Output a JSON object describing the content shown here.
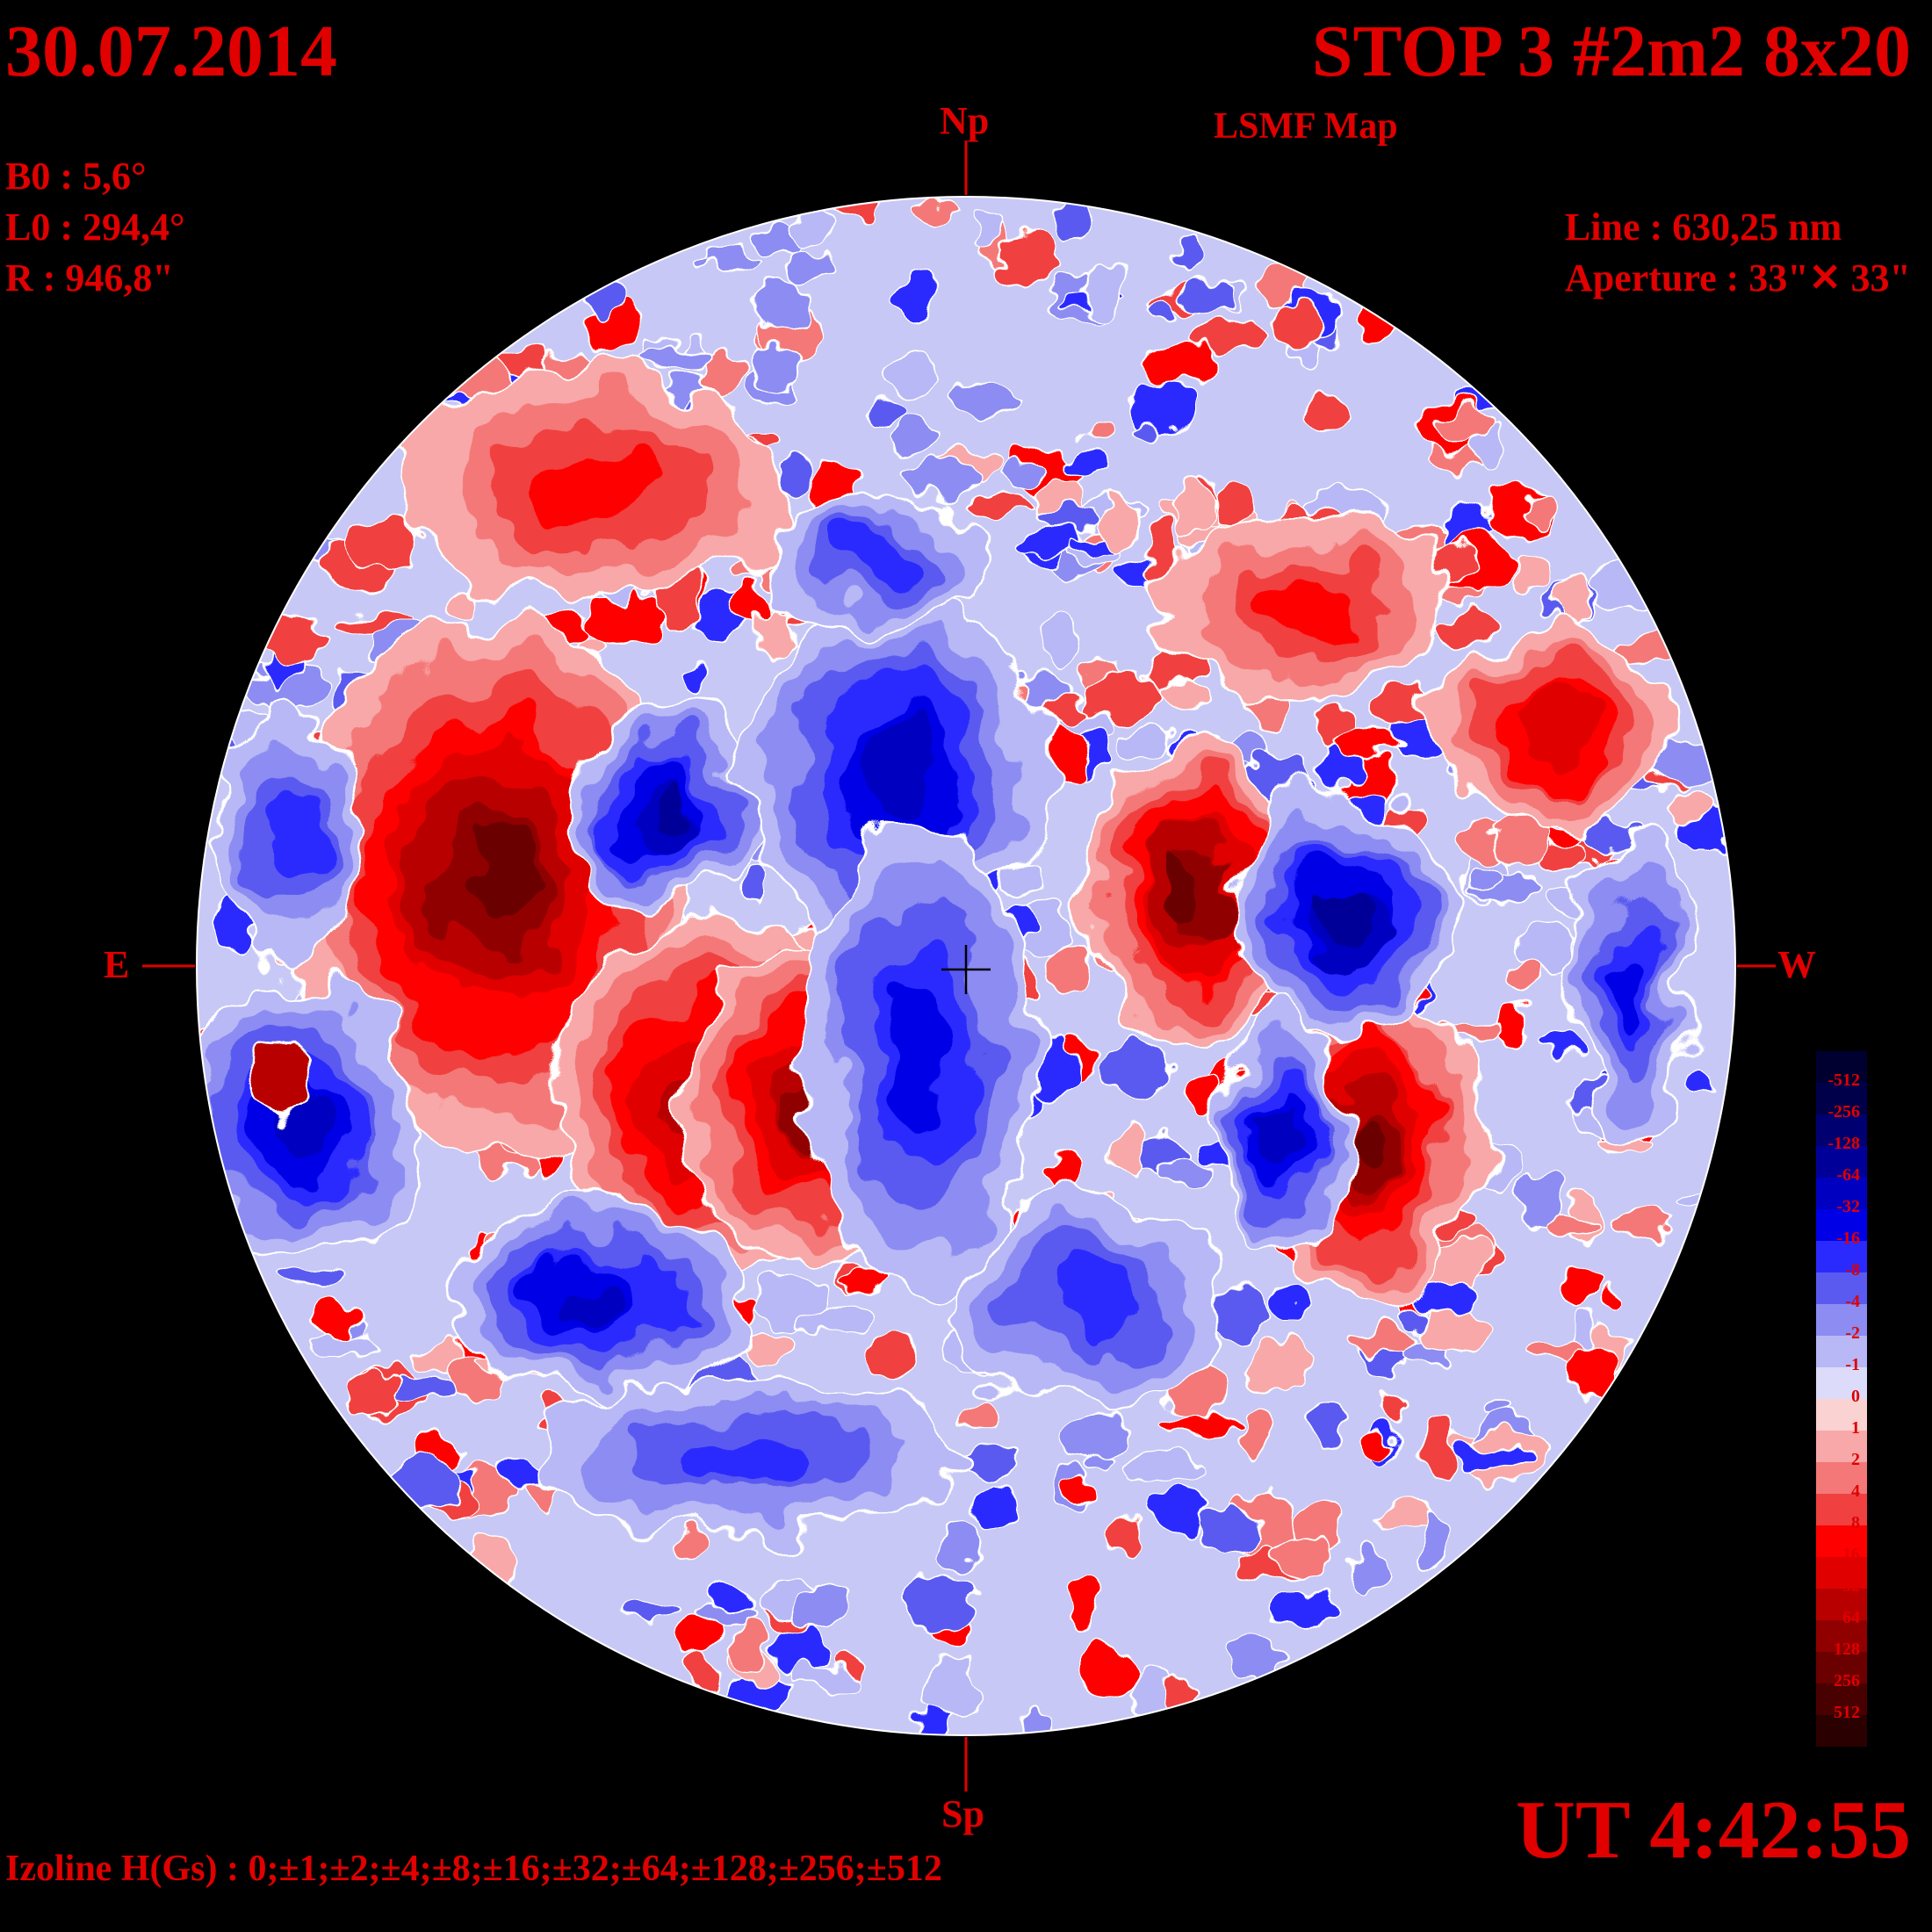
{
  "header": {
    "date": "30.07.2014",
    "title": "STOP 3 #2m2 8x20",
    "subtitle": "LSMF  Map"
  },
  "params": {
    "b0": "B0 : 5,6°",
    "l0": "L0 : 294,4°",
    "r": "R  : 946,8\""
  },
  "instrument": {
    "line": "Line :  630,25 nm",
    "aperture": "Aperture : 33\"✕ 33\""
  },
  "directions": {
    "north": "Np",
    "south": "Sp",
    "east": "E",
    "west": "W"
  },
  "time": "UT 4:42:55",
  "izoline": "Izoline H(Gs) : 0;±1;±2;±4;±8;±16;±32;±64;±128;±256;±512",
  "colors": {
    "text": "#e00000",
    "background": "#000000",
    "contour": "#ffffff"
  },
  "scale": {
    "labels": [
      "-512",
      "-256",
      "-128",
      "-64",
      "-32",
      "-16",
      "-8",
      "-4",
      "-2",
      "-1",
      "0",
      "1",
      "2",
      "4",
      "8",
      "16",
      "32",
      "64",
      "128",
      "256",
      "512"
    ],
    "colors": [
      "#000030",
      "#00004a",
      "#000070",
      "#000098",
      "#0000c0",
      "#0000e6",
      "#2a2aff",
      "#5a5af0",
      "#8c8cf2",
      "#b8b8f6",
      "#dcdcfa",
      "#fad2d2",
      "#f8a8a8",
      "#f47878",
      "#f04040",
      "#ff0000",
      "#e00000",
      "#b80000",
      "#900000",
      "#6a0000",
      "#480000",
      "#2a0000"
    ]
  }
}
